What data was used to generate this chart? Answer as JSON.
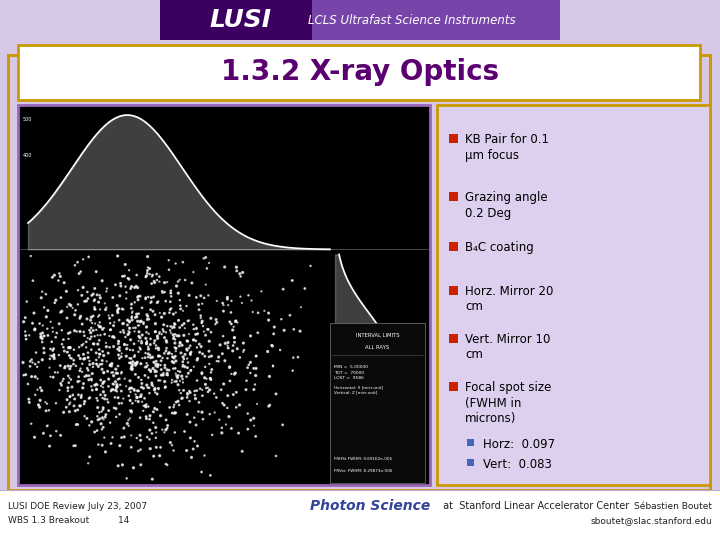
{
  "title": "1.3.2 X-ray Optics",
  "title_color": "#5B0070",
  "title_fontsize": 20,
  "header_bg_left": "#4B0082",
  "header_bg_right": "#7744AA",
  "header_text": "LUSI",
  "header_subtitle": "LCLS Ultrafast Science Instruments",
  "slide_bg": "#D8C8E8",
  "content_box_bg": "#DDD0EE",
  "content_box_border": "#CC9900",
  "title_box_bg": "#FFFFFF",
  "title_box_border": "#CC9900",
  "outer_border_color": "#CC9900",
  "bullet_color": "#CC2200",
  "bullet_items": [
    "KB Pair for 0.1\nμm focus",
    "Grazing angle\n0.2 Deg",
    "B₄C coating",
    "Horz. Mirror 20\ncm",
    "Vert. Mirror 10\ncm",
    "Focal spot size\n(FWHM in\nmicrons)"
  ],
  "sub_bullet_color": "#4466BB",
  "sub_bullet_items": [
    "Horz:  0.097",
    "Vert:  0.083"
  ],
  "footer_left1": "LUSI DOE Review July 23, 2007",
  "footer_left2": "WBS 1.3 Breakout          14",
  "footer_right1": "Sébastien Boutet",
  "footer_right2": "sboutet@slac.stanford.edu",
  "footer_center_text": "Photon Science",
  "footer_sub": " at  Stanford Linear Accelerator Center",
  "footer_bg": "#FFFFFF",
  "image_placeholder_bg": "#000000",
  "image_placeholder_border": "#9966BB"
}
